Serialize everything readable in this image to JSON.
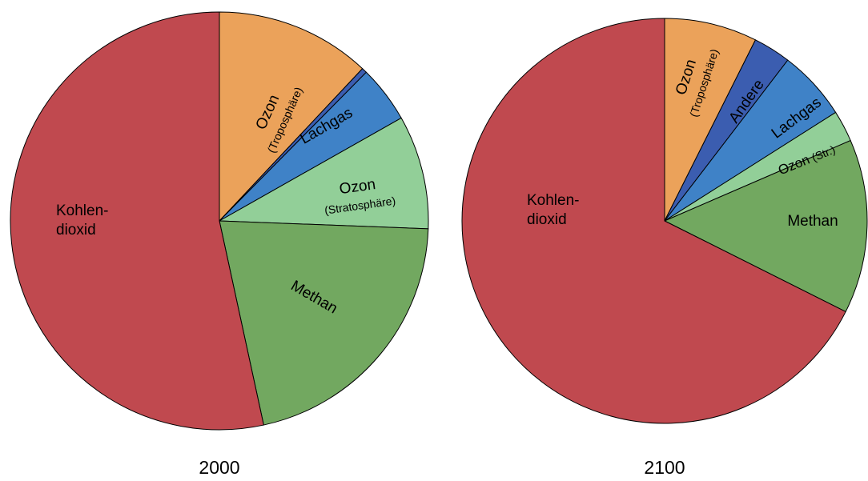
{
  "chart_data": [
    {
      "type": "pie",
      "title": "2000",
      "categories": [
        [
          "Ozon",
          "(Troposphäre)"
        ],
        null,
        [
          "Lachgas"
        ],
        [
          "Ozon",
          "(Stratosphäre)"
        ],
        [
          "Methan"
        ],
        [
          "Kohlen-",
          "dioxid"
        ]
      ],
      "values": [
        12,
        0.4,
        4.4,
        8.8,
        21,
        53.4
      ],
      "colors": [
        "#eba25a",
        "#3b5db0",
        "#3f82c7",
        "#92cf98",
        "#72a860",
        "#c0494f"
      ]
    },
    {
      "type": "pie",
      "title": "2100",
      "categories": [
        [
          "Ozon",
          "(Troposphäre)"
        ],
        [
          "Andere"
        ],
        [
          "Lachgas"
        ],
        [
          "Ozon",
          "(Str.)"
        ],
        [
          "Methan"
        ],
        [
          "Kohlen-",
          "dioxid"
        ]
      ],
      "values": [
        7.4,
        3,
        5.6,
        2.5,
        13.9,
        67.6
      ],
      "colors": [
        "#eba25a",
        "#3b5db0",
        "#3f82c7",
        "#92cf98",
        "#72a860",
        "#c0494f"
      ]
    }
  ]
}
